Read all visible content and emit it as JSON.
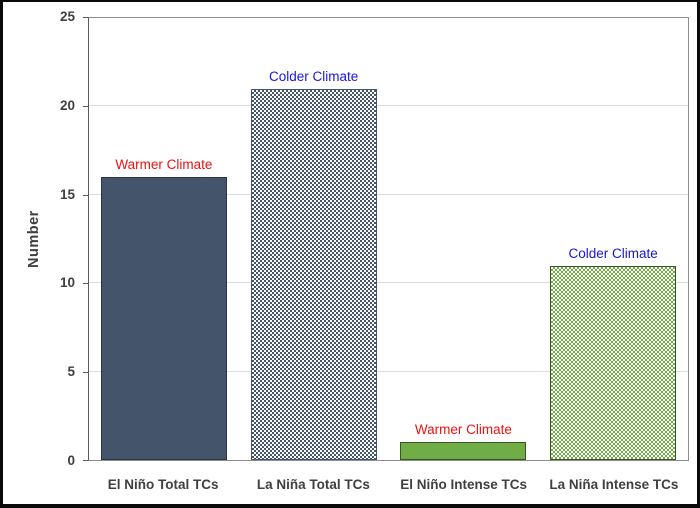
{
  "chart_data": {
    "type": "bar",
    "title": "",
    "xlabel": "",
    "ylabel": "Number",
    "ylim": [
      0,
      25
    ],
    "yticks": [
      0,
      5,
      10,
      15,
      20,
      25
    ],
    "grid": "horizontal-light-gray",
    "legend": "none",
    "categories": [
      "El Niño Total TCs",
      "La Niña Total TCs",
      "El Niño Intense TCs",
      "La Niña Intense TCs"
    ],
    "values": [
      16,
      21,
      1,
      11
    ],
    "bars": [
      {
        "category": "El Niño Total TCs",
        "value": 16,
        "annotation": "Warmer Climate",
        "annotation_color": "#ee1111",
        "fill": "solid",
        "color": "#44546A",
        "border_color": "#2a3548"
      },
      {
        "category": "La Niña Total TCs",
        "value": 21,
        "annotation": "Colder Climate",
        "annotation_color": "#1616dd",
        "fill": "checker",
        "color": "#44546A",
        "border_color": "#44546A"
      },
      {
        "category": "El Niño Intense TCs",
        "value": 1,
        "annotation": "Warmer Climate",
        "annotation_color": "#ee1111",
        "fill": "solid",
        "color": "#70AD47",
        "border_color": "#375623"
      },
      {
        "category": "La Niña Intense TCs",
        "value": 11,
        "annotation": "Colder Climate",
        "annotation_color": "#1616dd",
        "fill": "checker",
        "color": "#70AD47",
        "border_color": "#375623"
      }
    ],
    "colors": {
      "axis_text": "#404040",
      "gridline": "#dcdcdc",
      "plot_border": "#8c8c8c",
      "axis_line": "#595959",
      "checker_background": "#ffffff"
    }
  }
}
